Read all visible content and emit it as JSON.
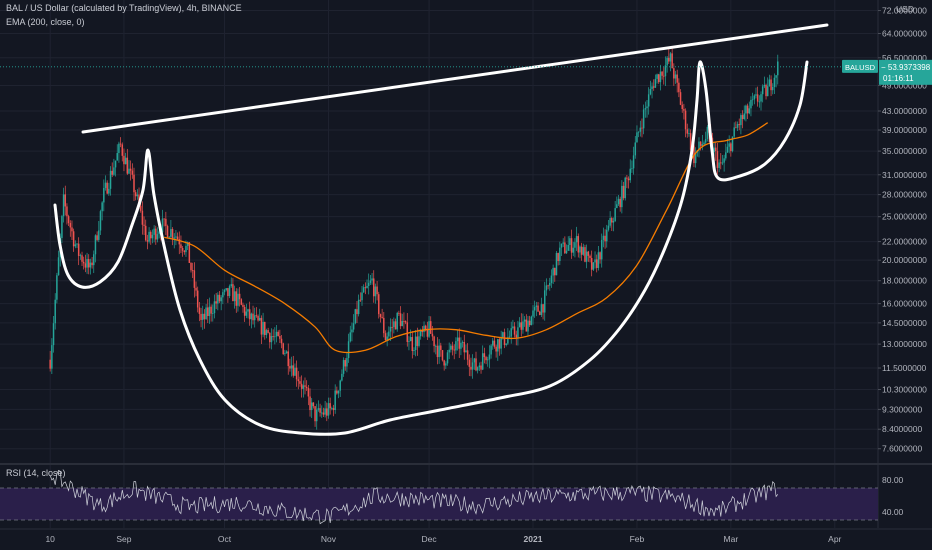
{
  "header": {
    "symbol_line": "BAL / US Dollar (calculated by TradingView), 4h, BINANCE",
    "ema_line": "EMA (200, close, 0)",
    "rsi_line": "RSI (14, close)"
  },
  "price_axis": {
    "currency": "USD",
    "ticks": [
      "72.0000000",
      "64.0000000",
      "56.5000000",
      "49.0000000",
      "43.0000000",
      "39.0000000",
      "35.0000000",
      "31.0000000",
      "28.0000000",
      "25.0000000",
      "22.0000000",
      "20.0000000",
      "18.0000000",
      "16.0000000",
      "14.5000000",
      "13.0000000",
      "11.5000000",
      "10.3000000",
      "9.3000000",
      "8.4000000",
      "7.6000000"
    ],
    "tick_values": [
      72,
      64,
      56.5,
      49,
      43,
      39,
      35,
      31,
      28,
      25,
      22,
      20,
      18,
      16,
      14.5,
      13,
      11.5,
      10.3,
      9.3,
      8.4,
      7.6
    ],
    "scale": "log",
    "ylim": [
      7.1,
      76
    ]
  },
  "last_price_badge": {
    "symbol": "BALUSD",
    "price": "53.9373398",
    "countdown": "01:16:11",
    "color": "#26a69a"
  },
  "time_axis": {
    "labels": [
      "10",
      "Sep",
      "Oct",
      "Nov",
      "Dec",
      "2021",
      "Feb",
      "Mar",
      "Apr"
    ]
  },
  "rsi_axis": {
    "ticks": [
      "80.00",
      "40.00"
    ],
    "tick_values": [
      80,
      40
    ],
    "band": [
      30,
      70
    ]
  },
  "chart_data": {
    "type": "candlestick",
    "timeframe": "4h",
    "scale": "log",
    "series": [
      {
        "name": "BALUSD",
        "x": [
          "Aug 10",
          "Aug 14",
          "Aug 18",
          "Aug 22",
          "Aug 26",
          "Aug 31",
          "Sep 4",
          "Sep 8",
          "Sep 12",
          "Sep 16",
          "Sep 20",
          "Sep 24",
          "Sep 28",
          "Oct 3",
          "Oct 8",
          "Oct 13",
          "Oct 18",
          "Oct 23",
          "Oct 28",
          "Nov 2",
          "Nov 6",
          "Nov 10",
          "Nov 14",
          "Nov 18",
          "Nov 22",
          "Nov 26",
          "Dec 1",
          "Dec 5",
          "Dec 10",
          "Dec 15",
          "Dec 20",
          "Dec 25",
          "Dec 30",
          "Jan 4",
          "Jan 9",
          "Jan 14",
          "Jan 19",
          "Jan 24",
          "Jan 29",
          "Feb 2",
          "Feb 6",
          "Feb 11",
          "Feb 14",
          "Feb 18",
          "Feb 22",
          "Feb 26",
          "Mar 3",
          "Mar 8",
          "Mar 12",
          "Mar 15"
        ],
        "y": [
          12,
          27,
          21,
          19,
          28,
          36,
          29,
          22,
          24,
          23,
          21,
          14.5,
          16,
          17,
          15,
          14,
          13,
          11,
          9,
          9.3,
          12,
          16,
          18,
          13.5,
          15,
          13,
          14,
          12,
          13,
          11.5,
          13,
          13.5,
          14.5,
          16,
          21,
          22,
          19,
          24,
          30,
          40,
          50,
          56,
          45,
          34,
          38,
          32,
          40,
          45,
          48,
          54
        ]
      },
      {
        "name": "EMA (200, close, 0)",
        "color": "#f57c00",
        "x": [
          "Sep 13",
          "Sep 22",
          "Oct 1",
          "Oct 10",
          "Oct 19",
          "Oct 28",
          "Nov 3",
          "Nov 12",
          "Nov 21",
          "Nov 30",
          "Dec 9",
          "Dec 18",
          "Dec 27",
          "Jan 5",
          "Jan 14",
          "Jan 23",
          "Feb 1",
          "Feb 10",
          "Feb 19",
          "Feb 28",
          "Mar 6",
          "Mar 12"
        ],
        "y": [
          22.5,
          21.5,
          19,
          17.5,
          16,
          14.2,
          12.6,
          12.6,
          13.5,
          14,
          14,
          13.6,
          13.4,
          14,
          15.2,
          16.5,
          19.5,
          26,
          35,
          37,
          38,
          40.5
        ]
      },
      {
        "name": "RSI (14, close)",
        "x": [
          "Aug 10",
          "Aug 25",
          "Sep 4",
          "Sep 20",
          "Oct 5",
          "Oct 20",
          "Nov 2",
          "Nov 15",
          "Dec 1",
          "Dec 15",
          "Jan 1",
          "Jan 15",
          "Feb 1",
          "Feb 12",
          "Feb 25",
          "Mar 5",
          "Mar 12",
          "Mar 15"
        ],
        "y": [
          88,
          48,
          68,
          46,
          52,
          40,
          34,
          60,
          55,
          48,
          58,
          62,
          64,
          58,
          40,
          55,
          66,
          70
        ]
      }
    ],
    "annotations": [
      "upper resistance trendline",
      "cup and handle outline"
    ],
    "grid": true,
    "legend": "top-left"
  }
}
